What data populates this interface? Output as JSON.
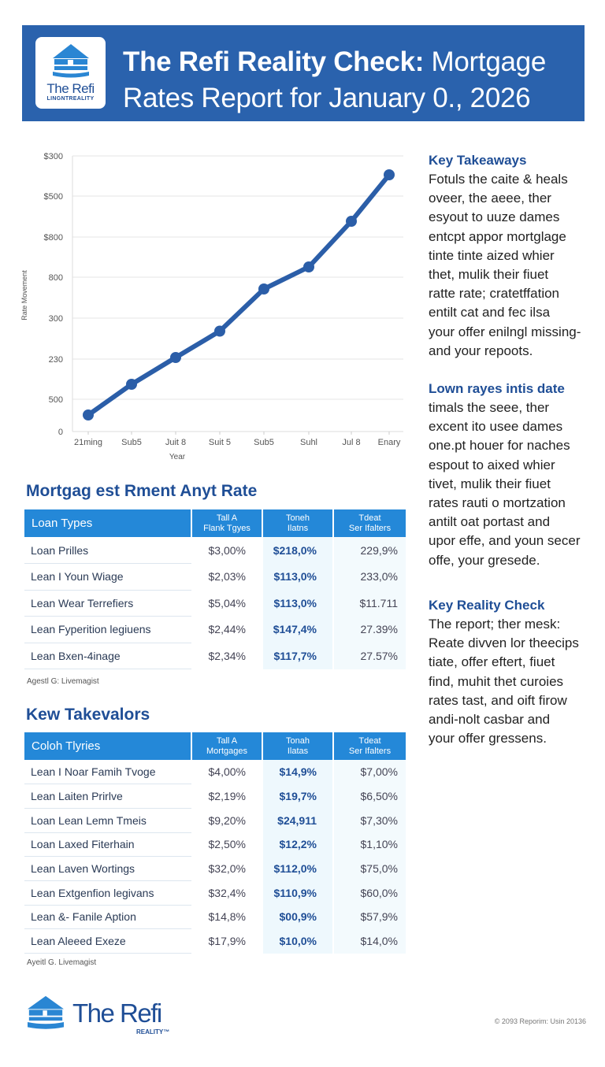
{
  "header": {
    "title_bold": "The Refi Reality Check:",
    "title_rest": " Mortgage Rates Report for January 0., 2026",
    "logo_name": "The Refi",
    "logo_sub": "LINGNTREALITY",
    "bg_color": "#2a62ad"
  },
  "chart_data": {
    "type": "line",
    "title": "",
    "xlabel": "Year",
    "ylabel": "Rate Movement",
    "categories": [
      "21ming",
      "Sub5",
      "Juit 8",
      "Suit 5",
      "Sub5",
      "Suhl",
      "Jul 8",
      "Enary"
    ],
    "y_tick_labels": [
      "0",
      "500",
      "230",
      "300",
      "800",
      "$800",
      "$500",
      "$300"
    ],
    "series": [
      {
        "name": "Rate",
        "color": "#2b5ea8",
        "values": [
          42,
          120,
          188,
          255,
          362,
          418,
          534,
          652
        ]
      }
    ],
    "ylim": [
      0,
      700
    ],
    "grid": true,
    "legend": "none"
  },
  "side": {
    "blocks": [
      {
        "title": "Key Takeaways",
        "lines": [
          "Fotuls the caite & heals",
          "oveer, the aeee, ther",
          "esyout to uuze dames",
          "entcpt appor mortglage",
          "tinte tinte aized whier",
          "thet, mulik their fiuet",
          "ratte rate; cratetffation",
          "entilt cat and fec ilsa",
          "your offer enilngl missing-",
          "and your repoots."
        ]
      },
      {
        "title": "Lown rayes intis date",
        "lines": [
          "timals the seee, ther",
          "excent ito usee dames",
          "one.pt houer for naches",
          "espout to aixed whier",
          "tivet, mulik their fiuet",
          "rates rauti o mortzation",
          "antilt oat portast and",
          "upor effe, and youn secer",
          "offe, your gresede."
        ]
      },
      {
        "title": "Key Reality Check",
        "lines": [
          "The report; ther mesk:",
          "Reate divven lor theecips",
          "tiate, offer eftert, fiuet",
          "find, muhit thet curoies",
          "rates tast, and oift firow",
          "andi-nolt casbar and",
          "your offer gressens."
        ]
      }
    ]
  },
  "table1": {
    "title": "Mortgag est Rment Anyt Rate",
    "headers": [
      "Loan Types",
      "Tall A\nFlank Tgyes",
      "Toneh\nIlatns",
      "Tdeat\nSer Ifalters"
    ],
    "rows": [
      [
        "Loan Prilles",
        "$3,00%",
        "$218,0%",
        "229,9%"
      ],
      [
        "Lean I Youn Wiage",
        "$2,03%",
        "$113,0%",
        "233,0%"
      ],
      [
        "Lean Wear Terrefiers",
        "$5,04%",
        "$113,0%",
        "$11.711"
      ],
      [
        "Lean Fyperition legiuens",
        "$2,44%",
        "$147,4%",
        "27.39%"
      ],
      [
        "Lean Bxen-4inage",
        "$2,34%",
        "$117,7%",
        "27.57%"
      ]
    ],
    "footnote": "Agestl G: Livemagist"
  },
  "table2": {
    "title": "Kew Takevalors",
    "headers": [
      "Coloh Tlyries",
      "Tall A\nMortgages",
      "Tonah\nIlatas",
      "Tdeat\nSer Ifalters"
    ],
    "rows": [
      [
        "Lean I Noar Famih Tvoge",
        "$4,00%",
        "$14,9%",
        "$7,00%"
      ],
      [
        "Lean Laiten Prirlve",
        "$2,19%",
        "$19,7%",
        "$6,50%"
      ],
      [
        "Loan Lean Lemn Tmeis",
        "$9,20%",
        "$24,911",
        "$7,30%"
      ],
      [
        "Loan Laxed Fiterhain",
        "$2,50%",
        "$12,2%",
        "$1,10%"
      ],
      [
        "Lean Laven Wortings",
        "$32,0%",
        "$112,0%",
        "$75,0%"
      ],
      [
        "Lean Extgenfion legivans",
        "$32,4%",
        "$110,9%",
        "$60,0%"
      ],
      [
        "Lean &- Fanile Aption",
        "$14,8%",
        "$00,9%",
        "$57,9%"
      ],
      [
        "Lean Aleeed Exeze",
        "$17,9%",
        "$10,0%",
        "$14,0%"
      ]
    ],
    "footnote": "Ayeitl G. Livemagist"
  },
  "footer": {
    "logo_name": "The Refi",
    "logo_sub": "REALITY™",
    "copyright": "© 2093 Reporim: Usin 20136"
  }
}
